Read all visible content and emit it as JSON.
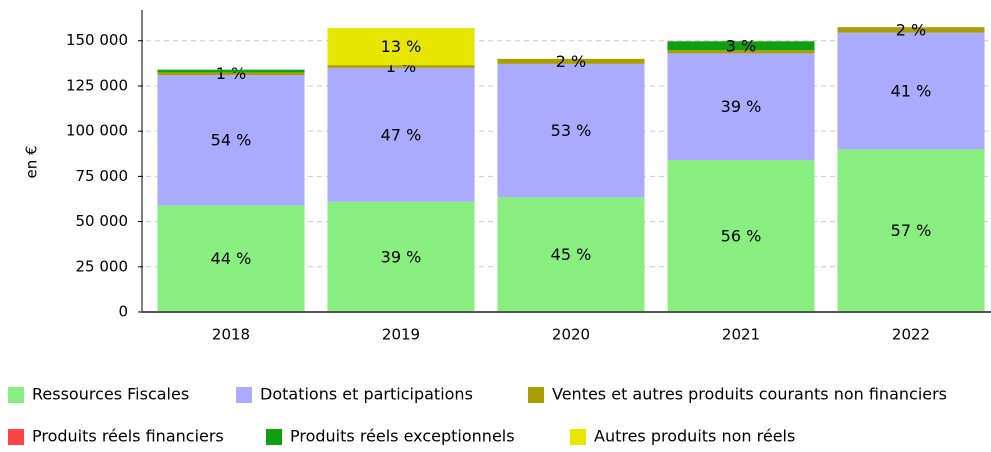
{
  "chart_data": {
    "type": "stacked_bar",
    "y_label": "en €",
    "categories": [
      "2018",
      "2019",
      "2020",
      "2021",
      "2022"
    ],
    "series": [
      {
        "name": "Ressources Fiscales",
        "color": "#88ee80",
        "values": [
          59000,
          61000,
          63500,
          84000,
          90000
        ],
        "value_labels": [
          "44 %",
          "39 %",
          "45 %",
          "56 %",
          "57 %"
        ]
      },
      {
        "name": "Dotations et participations",
        "color": "#aaaaff",
        "values": [
          72000,
          74000,
          73700,
          59000,
          64500
        ],
        "value_labels": [
          "54 %",
          "47 %",
          "53 %",
          "39 %",
          "41 %"
        ]
      },
      {
        "name": "Ventes et autres produits courants non financiers",
        "color": "#aa9f00",
        "values": [
          1500,
          1500,
          2800,
          1700,
          3000
        ],
        "value_labels": [
          "1 %",
          "1 %",
          "2 %",
          null,
          "2 %"
        ]
      },
      {
        "name": "Produits réels financiers",
        "color": "#ff4444",
        "values": [
          0,
          0,
          0,
          0,
          0
        ],
        "value_labels": [
          null,
          null,
          null,
          null,
          null
        ]
      },
      {
        "name": "Produits réels exceptionnels",
        "color": "#119f11",
        "values": [
          1500,
          0,
          0,
          5000,
          0
        ],
        "value_labels": [
          null,
          null,
          null,
          "3 %",
          null
        ]
      },
      {
        "name": "Autres produits non réels",
        "color": "#e6e600",
        "values": [
          0,
          20500,
          0,
          0,
          0
        ],
        "value_labels": [
          null,
          "13 %",
          null,
          null,
          null
        ]
      }
    ],
    "ylim": [
      0,
      167000
    ],
    "yticks": [
      {
        "value": 0,
        "label": "0"
      },
      {
        "value": 25000,
        "label": "25 000"
      },
      {
        "value": 50000,
        "label": "50 000"
      },
      {
        "value": 75000,
        "label": "75 000"
      },
      {
        "value": 100000,
        "label": "100 000"
      },
      {
        "value": 125000,
        "label": "125 000"
      },
      {
        "value": 150000,
        "label": "150 000"
      }
    ],
    "grid": true
  }
}
